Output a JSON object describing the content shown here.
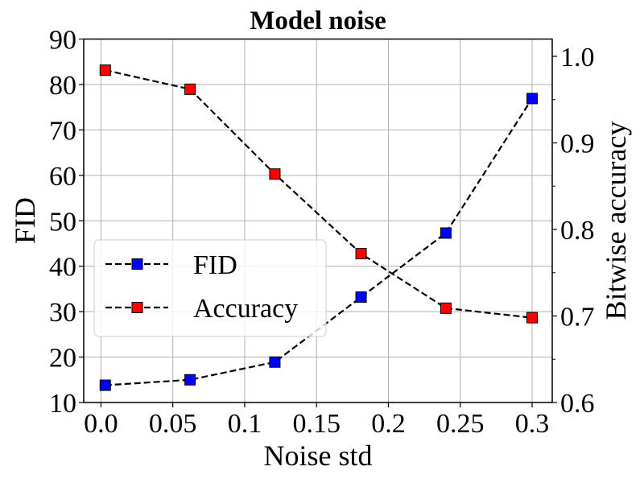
{
  "chart_data": {
    "type": "line",
    "title": "Model noise",
    "xlabel": "Noise std",
    "ylabel": "FID",
    "ylabel_right": "Bitwise accuracy",
    "x": [
      0.003,
      0.062,
      0.121,
      0.181,
      0.24,
      0.3
    ],
    "xlim": [
      -0.012,
      0.314
    ],
    "ylim": [
      10,
      90
    ],
    "ylim_right": [
      0.6,
      1.02
    ],
    "xticks": [
      "0.0",
      "0.05",
      "0.1",
      "0.15",
      "0.2",
      "0.25",
      "0.3"
    ],
    "xtick_values": [
      0,
      0.05,
      0.1,
      0.15,
      0.2,
      0.25,
      0.3
    ],
    "yticks": [
      "10",
      "20",
      "30",
      "40",
      "50",
      "60",
      "70",
      "80",
      "90"
    ],
    "yticks_right": [
      "0.6",
      "0.7",
      "0.8",
      "0.9",
      "1.0"
    ],
    "grid": true,
    "legend_position": "center-left",
    "series": [
      {
        "name": "FID",
        "axis": "left",
        "color": "#0000ff",
        "line_style": "dashed",
        "marker": "square",
        "values": [
          13.8,
          15.0,
          18.9,
          33.2,
          47.3,
          76.9
        ]
      },
      {
        "name": "Accuracy",
        "axis": "right",
        "color": "#ff0000",
        "line_style": "dashed",
        "marker": "square",
        "values": [
          0.984,
          0.962,
          0.864,
          0.772,
          0.709,
          0.698
        ]
      }
    ]
  }
}
